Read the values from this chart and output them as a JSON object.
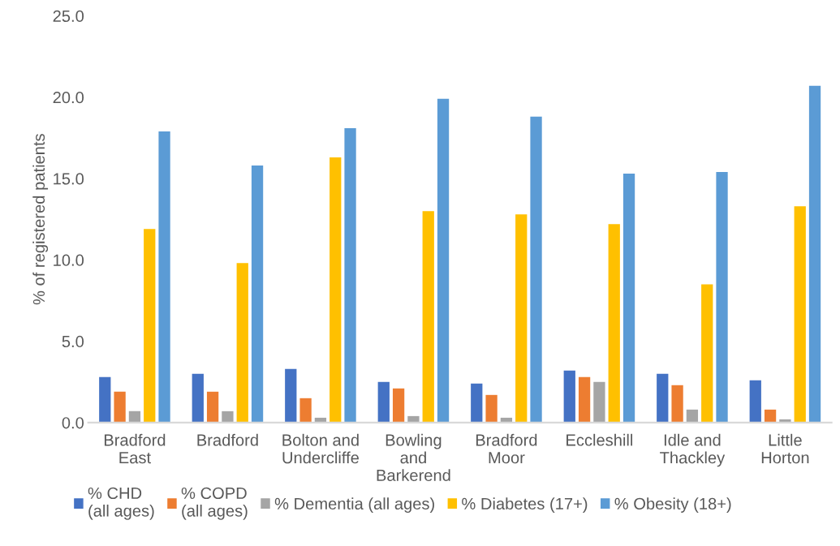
{
  "chart_data": {
    "type": "bar",
    "ylabel": "% of registered patients",
    "categories": [
      "Bradford\nEast",
      "Bradford",
      "Bolton and\nUndercliffe",
      "Bowling\nand\nBarkerend",
      "Bradford\nMoor",
      "Eccleshill",
      "Idle and\nThackley",
      "Little\nHorton"
    ],
    "series": [
      {
        "name": "% CHD\n(all ages)",
        "color": "#4472c4",
        "values": [
          2.8,
          3.0,
          3.3,
          2.5,
          2.4,
          3.2,
          3.0,
          2.6
        ]
      },
      {
        "name": "% COPD\n(all ages)",
        "color": "#ed7d31",
        "values": [
          1.9,
          1.9,
          1.5,
          2.1,
          1.7,
          2.8,
          2.3,
          0.8
        ]
      },
      {
        "name": "% Dementia (all ages)",
        "color": "#a5a5a5",
        "values": [
          0.7,
          0.7,
          0.3,
          0.4,
          0.3,
          2.5,
          0.8,
          0.2
        ]
      },
      {
        "name": "% Diabetes (17+)",
        "color": "#ffc000",
        "values": [
          11.9,
          9.8,
          16.3,
          13.0,
          12.8,
          12.2,
          8.5,
          13.3
        ]
      },
      {
        "name": "% Obesity (18+)",
        "color": "#5b9bd5",
        "values": [
          17.9,
          15.8,
          18.1,
          19.9,
          18.8,
          15.3,
          15.4,
          20.7
        ]
      }
    ],
    "ylim": [
      0,
      25
    ],
    "yticks": [
      {
        "value": 0,
        "label": "0.0"
      },
      {
        "value": 5,
        "label": "5.0"
      },
      {
        "value": 10,
        "label": "10.0"
      },
      {
        "value": 15,
        "label": "15.0"
      },
      {
        "value": 20,
        "label": "20.0"
      },
      {
        "value": 25,
        "label": "25.0"
      }
    ],
    "grid": false,
    "legend": "bottom"
  }
}
